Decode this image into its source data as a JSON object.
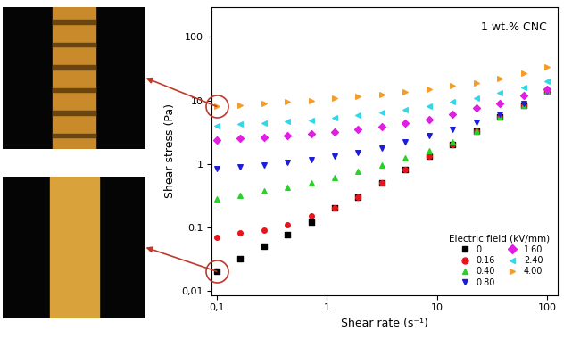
{
  "chart_data": {
    "type": "scatter",
    "x_label": "Shear rate (s⁻¹)",
    "y_label": "Shear stress (Pa)",
    "annotation": "1 wt.% CNC",
    "log": true,
    "legend": "lower right",
    "legend_title": "Electric field (kV/mm)",
    "x": [
      0.1,
      0.164,
      0.268,
      0.439,
      0.72,
      1.18,
      1.93,
      3.16,
      5.18,
      8.48,
      13.9,
      22.8,
      37.3,
      61.1,
      100
    ],
    "xlim": [
      0.09,
      125
    ],
    "ylim": [
      0.0085,
      300
    ],
    "xticks": [
      {
        "value": 0.1,
        "label": "0,1"
      },
      1,
      10,
      100
    ],
    "yticks": [
      {
        "value": 0.01,
        "label": "0,01"
      },
      {
        "value": 0.1,
        "label": "0,1"
      },
      1,
      10,
      100
    ],
    "series": [
      {
        "name": "0",
        "color": "#000000",
        "marker": "square",
        "values": [
          0.02,
          0.032,
          0.05,
          0.075,
          0.12,
          0.2,
          0.3,
          0.5,
          0.8,
          1.3,
          2.0,
          3.3,
          5.5,
          8.5,
          14
        ]
      },
      {
        "name": "0.16",
        "color": "#e8141c",
        "marker": "circle",
        "values": [
          0.07,
          0.08,
          0.09,
          0.11,
          0.15,
          0.2,
          0.3,
          0.5,
          0.8,
          1.3,
          2.0,
          3.3,
          5.5,
          8.5,
          14
        ]
      },
      {
        "name": "0.40",
        "color": "#2bd12b",
        "marker": "triangle_up",
        "values": [
          0.28,
          0.32,
          0.37,
          0.42,
          0.5,
          0.6,
          0.75,
          0.95,
          1.25,
          1.6,
          2.2,
          3.3,
          5.5,
          8.5,
          14
        ]
      },
      {
        "name": "0.80",
        "color": "#1c1cd9",
        "marker": "triangle_down",
        "values": [
          0.85,
          0.9,
          0.95,
          1.05,
          1.15,
          1.3,
          1.5,
          1.75,
          2.2,
          2.8,
          3.5,
          4.5,
          6.0,
          9.0,
          14
        ]
      },
      {
        "name": "1.60",
        "color": "#e020e0",
        "marker": "diamond",
        "values": [
          2.4,
          2.5,
          2.6,
          2.75,
          2.95,
          3.2,
          3.5,
          3.9,
          4.4,
          5.0,
          6.0,
          7.5,
          9.0,
          12,
          15
        ]
      },
      {
        "name": "2.40",
        "color": "#30d8e8",
        "marker": "triangle_left",
        "values": [
          4.0,
          4.2,
          4.4,
          4.6,
          4.9,
          5.3,
          5.8,
          6.4,
          7.2,
          8.2,
          9.5,
          11,
          13,
          16,
          20
        ]
      },
      {
        "name": "4.00",
        "color": "#f39c2a",
        "marker": "triangle_right",
        "values": [
          8.0,
          8.5,
          9.0,
          9.5,
          10,
          10.8,
          11.5,
          12.5,
          13.5,
          15,
          17,
          19,
          22,
          27,
          34
        ]
      }
    ]
  }
}
